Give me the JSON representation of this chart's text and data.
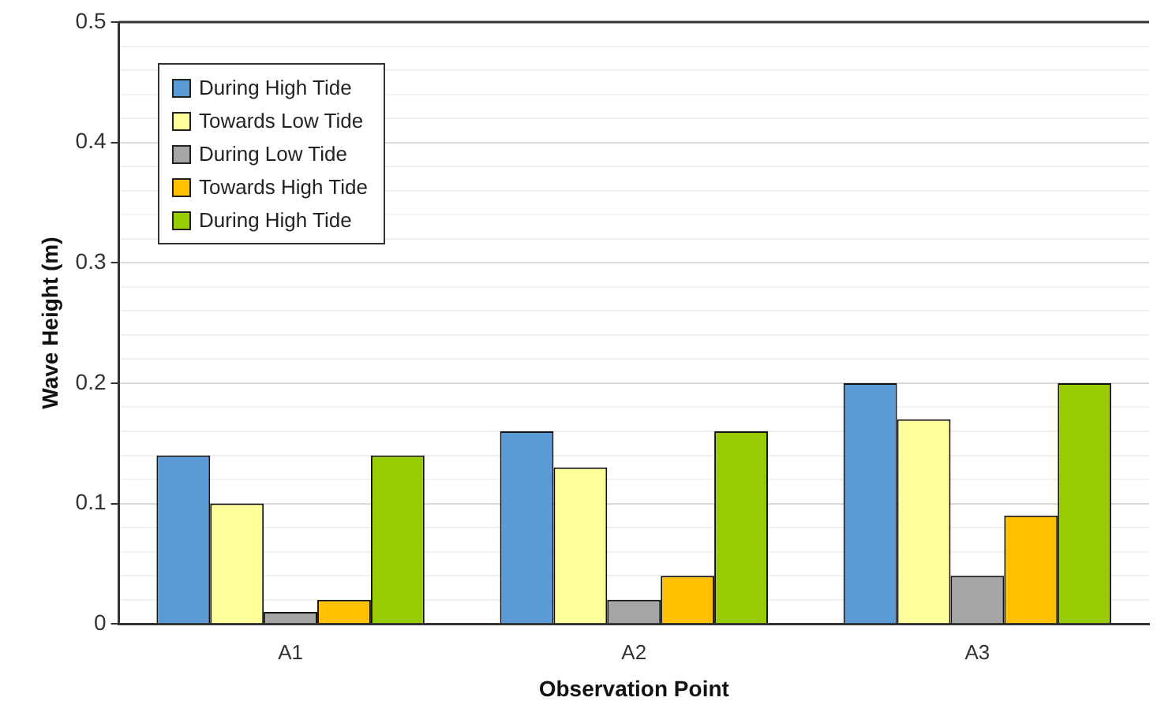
{
  "chart_data": {
    "type": "bar",
    "xlabel": "Observation Point",
    "ylabel": "Wave Height (m)",
    "categories": [
      "A1",
      "A2",
      "A3"
    ],
    "series": [
      {
        "name": "During High Tide",
        "color": "#5b9bd5",
        "values": [
          0.14,
          0.16,
          0.2
        ]
      },
      {
        "name": "Towards Low Tide",
        "color": "#ffff99",
        "values": [
          0.1,
          0.13,
          0.17
        ]
      },
      {
        "name": "During Low Tide",
        "color": "#a5a5a5",
        "values": [
          0.01,
          0.02,
          0.04
        ]
      },
      {
        "name": "Towards High Tide",
        "color": "#ffc000",
        "values": [
          0.02,
          0.04,
          0.09
        ]
      },
      {
        "name": "During High Tide",
        "color": "#99cc00",
        "values": [
          0.14,
          0.16,
          0.2
        ]
      }
    ],
    "ylim": [
      0,
      0.5
    ],
    "yticks": [
      0,
      {
        "value": 0.02,
        "label": null
      },
      {
        "value": 0.04,
        "label": null
      },
      {
        "value": 0.06,
        "label": null
      },
      {
        "value": 0.08,
        "label": null
      },
      0.1,
      {
        "value": 0.12,
        "label": null
      },
      {
        "value": 0.14,
        "label": null
      },
      {
        "value": 0.16,
        "label": null
      },
      {
        "value": 0.18,
        "label": null
      },
      0.2,
      {
        "value": 0.22,
        "label": null
      },
      {
        "value": 0.24,
        "label": null
      },
      {
        "value": 0.26,
        "label": null
      },
      {
        "value": 0.28,
        "label": null
      },
      0.3,
      {
        "value": 0.32,
        "label": null
      },
      {
        "value": 0.34,
        "label": null
      },
      {
        "value": 0.36,
        "label": null
      },
      {
        "value": 0.38,
        "label": null
      },
      0.4,
      {
        "value": 0.42,
        "label": null
      },
      {
        "value": 0.44,
        "label": null
      },
      {
        "value": 0.46,
        "label": null
      },
      {
        "value": 0.48,
        "label": null
      },
      0.5
    ],
    "grid": true,
    "legend": "top left"
  }
}
